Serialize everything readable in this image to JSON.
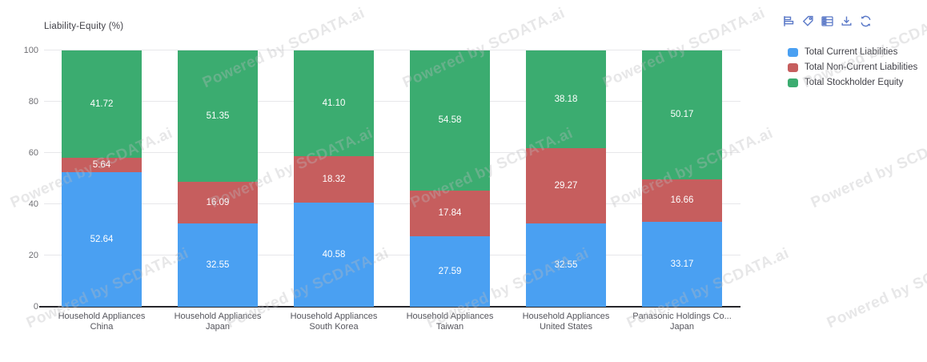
{
  "chart_title": "Liability-Equity (%)",
  "watermark": {
    "text": "Powered by SCDATA.ai"
  },
  "toolbar": {
    "icons": [
      "horizontal-bar-chart",
      "tag",
      "table",
      "download",
      "refresh"
    ],
    "icon_color": "#5c7ac8"
  },
  "colors": {
    "current_liabilities": "#4aa0f2",
    "non_current_liabilities": "#c65e5e",
    "stockholder_equity": "#3bac70",
    "gridline": "#e7e7ea",
    "axis_line": "#26262b",
    "tick_text": "#6e6e73"
  },
  "chart_data": {
    "type": "bar",
    "subtype": "stacked",
    "title": "Liability-Equity (%)",
    "xlabel": "",
    "ylabel": "Liability-Equity (%)",
    "ylim": [
      0,
      100
    ],
    "yticks": [
      0,
      20,
      40,
      60,
      80,
      100
    ],
    "grid": true,
    "legend_position": "right",
    "value_label_decimals": 2,
    "categories": [
      {
        "line1": "Household Appliances",
        "line2": "China"
      },
      {
        "line1": "Household Appliances",
        "line2": "Japan"
      },
      {
        "line1": "Household Appliances",
        "line2": "South Korea"
      },
      {
        "line1": "Household Appliances",
        "line2": "Taiwan"
      },
      {
        "line1": "Household Appliances",
        "line2": "United States"
      },
      {
        "line1": "Panasonic Holdings Co...",
        "line2": "Japan"
      }
    ],
    "series": [
      {
        "name": "Total Current Liabilities",
        "color": "#4aa0f2",
        "values": [
          52.64,
          32.55,
          40.58,
          27.59,
          32.55,
          33.17
        ]
      },
      {
        "name": "Total Non-Current Liabilities",
        "color": "#c65e5e",
        "values": [
          5.64,
          16.09,
          18.32,
          17.84,
          29.27,
          16.66
        ]
      },
      {
        "name": "Total Stockholder Equity",
        "color": "#3bac70",
        "values": [
          41.72,
          51.35,
          41.1,
          54.58,
          38.18,
          50.17
        ]
      }
    ]
  }
}
